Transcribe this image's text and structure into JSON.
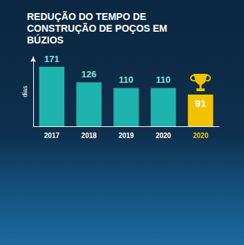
{
  "chart_data": {
    "type": "bar",
    "title": "REDUÇÃO DO TEMPO DE CONSTRUÇÃO DE POÇOS EM BÚZIOS",
    "y_label": "dias",
    "categories": [
      "2017",
      "2018",
      "2019",
      "2020",
      "2020"
    ],
    "values": [
      171,
      126,
      110,
      110,
      91
    ],
    "colors": [
      "#1fb3ad",
      "#1fb3ad",
      "#1fb3ad",
      "#1fb3ad",
      "#f2c200"
    ],
    "ylim": [
      0,
      200
    ],
    "tick_labels": "x",
    "grid": false,
    "data_labels": true
  }
}
